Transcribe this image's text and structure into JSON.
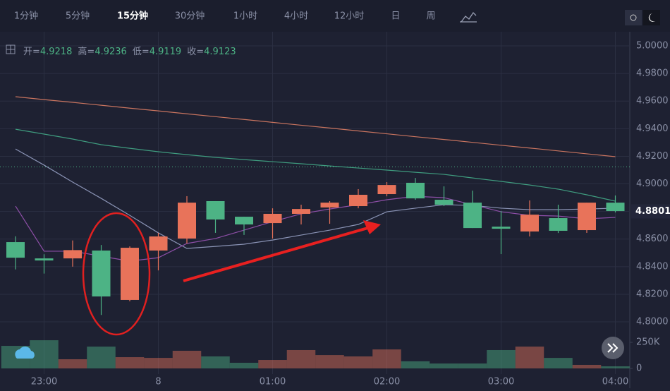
{
  "toolbar": {
    "intervals": [
      "1分钟",
      "5分钟",
      "15分钟",
      "30分钟",
      "1小时",
      "4小时",
      "12小时",
      "日",
      "周"
    ],
    "active": 2
  },
  "chart_data": {
    "type": "candlestick",
    "legend": [
      {
        "label": "开=",
        "value": 4.9218
      },
      {
        "label": "高=",
        "value": 4.9236
      },
      {
        "label": "低=",
        "value": 4.9119
      },
      {
        "label": "收=",
        "value": 4.9123
      }
    ],
    "categories": [
      null,
      "23:00",
      null,
      null,
      null,
      "8",
      null,
      null,
      null,
      "01:00",
      null,
      null,
      null,
      "02:00",
      null,
      null,
      null,
      "03:00",
      null,
      null,
      null,
      "04:00"
    ],
    "open": [
      4.8578,
      4.846,
      4.846,
      4.8517,
      4.8159,
      4.8517,
      4.8604,
      4.8875,
      4.8762,
      4.8716,
      4.8783,
      4.8829,
      4.8839,
      4.8926,
      4.9008,
      4.8885,
      4.8864,
      4.869,
      4.8655,
      4.8752,
      4.8665,
      4.8864
    ],
    "high": [
      4.862,
      4.849,
      4.859,
      4.8557,
      4.8547,
      4.8645,
      4.8911,
      4.8875,
      4.8762,
      4.8823,
      4.8849,
      4.8875,
      4.8962,
      4.9013,
      4.9043,
      4.8982,
      4.8951,
      4.8803,
      4.888,
      4.8849,
      4.8864,
      4.8916
    ],
    "low": [
      4.838,
      4.835,
      4.84,
      4.805,
      4.8149,
      4.8373,
      4.8568,
      4.8645,
      4.863,
      4.8604,
      4.8706,
      4.8711,
      4.8823,
      4.891,
      4.8885,
      4.8839,
      4.868,
      4.8491,
      4.8619,
      4.8644,
      4.8645,
      4.8793
    ],
    "close": [
      4.8465,
      4.8445,
      4.852,
      4.8184,
      4.8537,
      4.8619,
      4.8864,
      4.8742,
      4.8706,
      4.8783,
      4.8818,
      4.8864,
      4.8921,
      4.8992,
      4.8895,
      4.8849,
      4.868,
      4.8675,
      4.8777,
      4.866,
      4.8864,
      4.8803
    ],
    "up_color": "#e8735a",
    "down_color": "#4db385",
    "ma_lines": [
      {
        "color": "#c9745f",
        "values": [
          4.9632,
          4.9611,
          4.9591,
          4.957,
          4.9549,
          4.9529,
          4.9508,
          4.9487,
          4.9467,
          4.9446,
          4.9425,
          4.9405,
          4.9384,
          4.9363,
          4.9342,
          4.9322,
          4.9301,
          4.928,
          4.926,
          4.9239,
          4.9218,
          4.9197
        ]
      },
      {
        "color": "#3f9c7f",
        "values": [
          4.9396,
          4.9361,
          4.9325,
          4.9284,
          4.9258,
          4.9233,
          4.9212,
          4.9192,
          4.9176,
          4.9161,
          4.9146,
          4.913,
          4.9115,
          4.91,
          4.9084,
          4.9069,
          4.9043,
          4.9018,
          4.8992,
          4.8962,
          4.8921,
          4.8875
        ]
      },
      {
        "color": "#8a93b5",
        "values": [
          4.9253,
          4.9136,
          4.9013,
          4.8895,
          4.8772,
          4.8645,
          4.8532,
          4.8547,
          4.8563,
          4.8593,
          4.8629,
          4.8665,
          4.8706,
          4.8798,
          4.8824,
          4.8849,
          4.8844,
          4.8824,
          4.8813,
          4.8813,
          4.8818,
          4.8824
        ]
      },
      {
        "color": "#8e4fa8",
        "values": [
          4.8839,
          4.8512,
          4.8512,
          4.8476,
          4.844,
          4.8465,
          4.8568,
          4.8604,
          4.8665,
          4.8726,
          4.8783,
          4.8818,
          4.8849,
          4.8885,
          4.891,
          4.89,
          4.8849,
          4.8798,
          4.8772,
          4.8767,
          4.8747,
          4.8757
        ]
      }
    ],
    "last_price": 4.8801,
    "ylim": [
      4.7903,
      5.0077
    ],
    "yticks": [
      {
        "value": 4.8,
        "label": "4.8000"
      },
      {
        "value": 4.82,
        "label": "4.8200"
      },
      {
        "value": 4.84,
        "label": "4.8400"
      },
      {
        "value": 4.86,
        "label": "4.8600"
      },
      {
        "value": 4.88,
        "label": "4.8800"
      },
      {
        "value": 4.9,
        "label": "4.9000"
      },
      {
        "value": 4.92,
        "label": "4.9200"
      },
      {
        "value": 4.94,
        "label": "4.9400"
      },
      {
        "value": 4.96,
        "label": "4.9600"
      },
      {
        "value": 4.98,
        "label": "4.9800"
      },
      {
        "value": 5.0,
        "label": "5.0000"
      }
    ],
    "volumes": [
      216000,
      270000,
      88000,
      209000,
      108000,
      101000,
      169000,
      115000,
      54000,
      81000,
      176000,
      128000,
      115000,
      182000,
      68000,
      47000,
      47000,
      176000,
      209000,
      101000,
      34000,
      20000
    ],
    "vol_ylim": [
      0,
      284000
    ],
    "vol_yticks": [
      0,
      {
        "value": 250000,
        "label": "250K"
      }
    ],
    "grid": true
  }
}
